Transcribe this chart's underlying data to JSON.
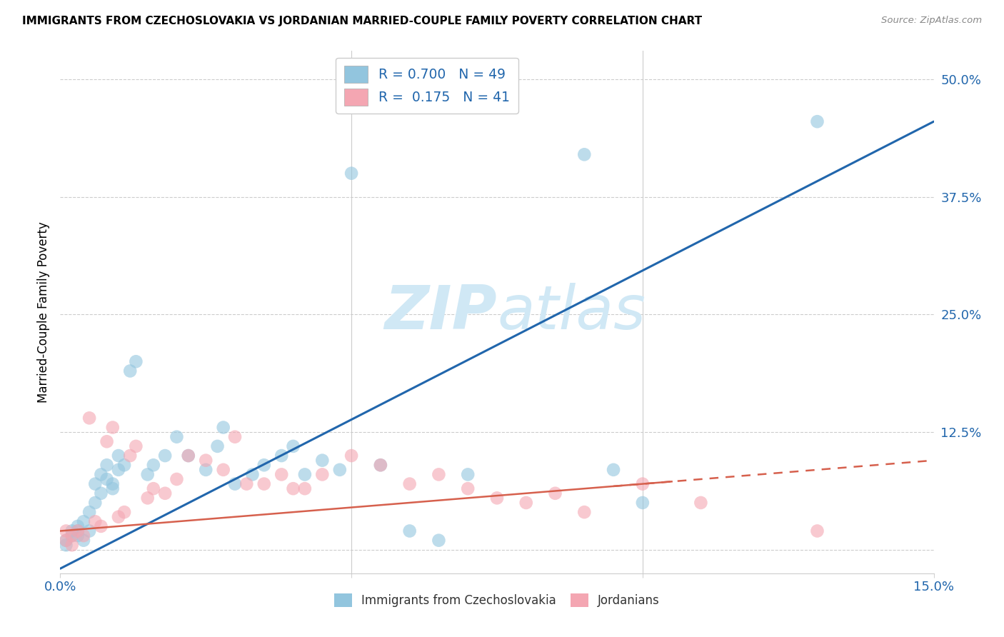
{
  "title": "IMMIGRANTS FROM CZECHOSLOVAKIA VS JORDANIAN MARRIED-COUPLE FAMILY POVERTY CORRELATION CHART",
  "source": "Source: ZipAtlas.com",
  "ylabel": "Married-Couple Family Poverty",
  "yticks": [
    0.0,
    0.125,
    0.25,
    0.375,
    0.5
  ],
  "ytick_labels": [
    "",
    "12.5%",
    "25.0%",
    "37.5%",
    "50.0%"
  ],
  "xmin": 0.0,
  "xmax": 0.15,
  "ymin": -0.025,
  "ymax": 0.53,
  "blue_R": 0.7,
  "blue_N": 49,
  "pink_R": 0.175,
  "pink_N": 41,
  "blue_color": "#92c5de",
  "pink_color": "#f4a6b2",
  "blue_line_color": "#2166ac",
  "pink_line_color": "#d6604d",
  "watermark_color": "#d0e8f5",
  "legend_label_blue": "Immigrants from Czechoslovakia",
  "legend_label_pink": "Jordanians",
  "blue_line_x0": 0.0,
  "blue_line_y0": -0.02,
  "blue_line_x1": 0.15,
  "blue_line_y1": 0.455,
  "pink_line_x0": 0.0,
  "pink_line_y0": 0.02,
  "pink_line_x1": 0.15,
  "pink_line_y1": 0.095,
  "blue_scatter_x": [
    0.001,
    0.001,
    0.002,
    0.002,
    0.003,
    0.003,
    0.003,
    0.004,
    0.004,
    0.005,
    0.005,
    0.006,
    0.006,
    0.007,
    0.007,
    0.008,
    0.008,
    0.009,
    0.009,
    0.01,
    0.01,
    0.011,
    0.012,
    0.013,
    0.015,
    0.016,
    0.018,
    0.02,
    0.022,
    0.025,
    0.027,
    0.028,
    0.03,
    0.033,
    0.035,
    0.038,
    0.04,
    0.042,
    0.045,
    0.048,
    0.05,
    0.055,
    0.06,
    0.065,
    0.07,
    0.09,
    0.095,
    0.1,
    0.13
  ],
  "blue_scatter_y": [
    0.005,
    0.01,
    0.015,
    0.02,
    0.02,
    0.015,
    0.025,
    0.03,
    0.01,
    0.04,
    0.02,
    0.05,
    0.07,
    0.06,
    0.08,
    0.075,
    0.09,
    0.07,
    0.065,
    0.085,
    0.1,
    0.09,
    0.19,
    0.2,
    0.08,
    0.09,
    0.1,
    0.12,
    0.1,
    0.085,
    0.11,
    0.13,
    0.07,
    0.08,
    0.09,
    0.1,
    0.11,
    0.08,
    0.095,
    0.085,
    0.4,
    0.09,
    0.02,
    0.01,
    0.08,
    0.42,
    0.085,
    0.05,
    0.455
  ],
  "pink_scatter_x": [
    0.001,
    0.001,
    0.002,
    0.002,
    0.003,
    0.004,
    0.005,
    0.006,
    0.007,
    0.008,
    0.009,
    0.01,
    0.011,
    0.012,
    0.013,
    0.015,
    0.016,
    0.018,
    0.02,
    0.022,
    0.025,
    0.028,
    0.03,
    0.032,
    0.035,
    0.038,
    0.04,
    0.042,
    0.045,
    0.05,
    0.055,
    0.06,
    0.065,
    0.07,
    0.075,
    0.08,
    0.085,
    0.09,
    0.1,
    0.11,
    0.13
  ],
  "pink_scatter_y": [
    0.01,
    0.02,
    0.005,
    0.015,
    0.02,
    0.015,
    0.14,
    0.03,
    0.025,
    0.115,
    0.13,
    0.035,
    0.04,
    0.1,
    0.11,
    0.055,
    0.065,
    0.06,
    0.075,
    0.1,
    0.095,
    0.085,
    0.12,
    0.07,
    0.07,
    0.08,
    0.065,
    0.065,
    0.08,
    0.1,
    0.09,
    0.07,
    0.08,
    0.065,
    0.055,
    0.05,
    0.06,
    0.04,
    0.07,
    0.05,
    0.02
  ]
}
